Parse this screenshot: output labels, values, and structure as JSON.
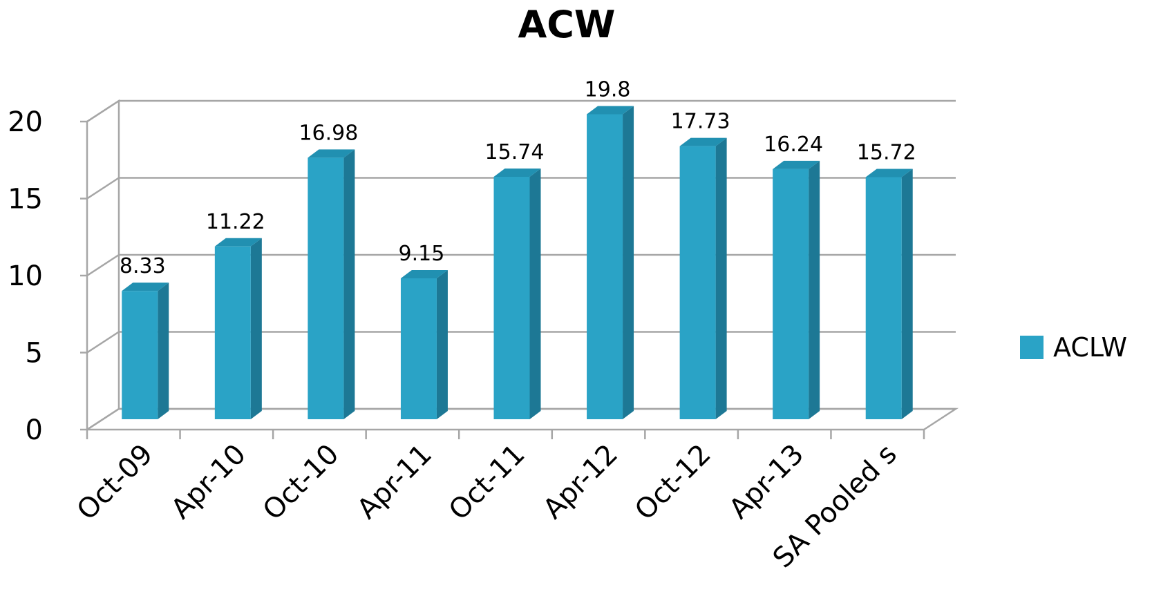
{
  "chart_data": {
    "type": "bar",
    "title": "ACW",
    "xlabel": "",
    "ylabel": "",
    "categories": [
      "Oct-09",
      "Apr-10",
      "Oct-10",
      "Apr-11",
      "Oct-11",
      "Apr-12",
      "Oct-12",
      "Apr-13",
      "SA Pooled s"
    ],
    "series": [
      {
        "name": "ACLW",
        "values": [
          8.33,
          11.22,
          16.98,
          9.15,
          15.74,
          19.8,
          17.73,
          16.24,
          15.72
        ],
        "data_labels": [
          "8.33",
          "11.22",
          "16.98",
          "9.15",
          "15.74",
          "19.8",
          "17.73",
          "16.24",
          "15.72"
        ]
      }
    ],
    "ylim": [
      0,
      20
    ],
    "yticks": [
      0,
      5,
      10,
      15,
      20
    ],
    "grid": true,
    "legend_position": "right",
    "style": "3d-column",
    "colors": {
      "bar_front": "#2aa3c6",
      "bar_side": "#1d7895",
      "bar_top": "#2190b1",
      "grid": "#a6a6a6"
    }
  }
}
